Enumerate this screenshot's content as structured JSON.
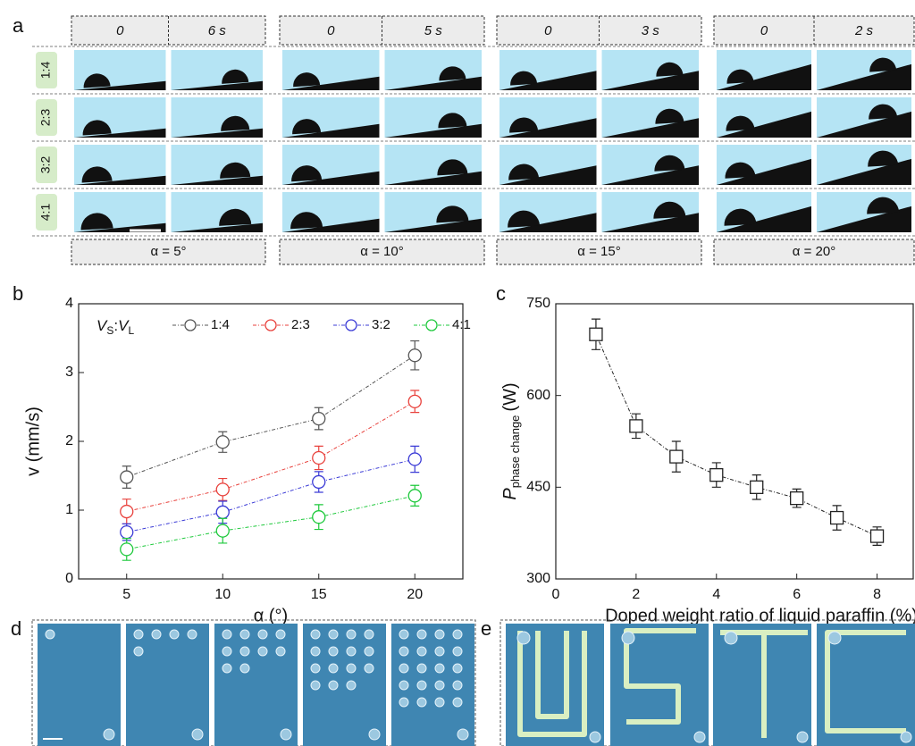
{
  "panel_labels": [
    "a",
    "b",
    "c",
    "d",
    "e"
  ],
  "panel_a": {
    "ratios": [
      "1:4",
      "2:3",
      "3:2",
      "4:1"
    ],
    "groups": [
      {
        "times": [
          "0",
          "6 s"
        ],
        "angle": "α = 5°"
      },
      {
        "times": [
          "0",
          "5 s"
        ],
        "angle": "α = 10°"
      },
      {
        "times": [
          "0",
          "3 s"
        ],
        "angle": "α = 15°"
      },
      {
        "times": [
          "0",
          "2 s"
        ],
        "angle": "α = 20°"
      }
    ]
  },
  "chart_data": [
    {
      "type": "line",
      "marker": "circle",
      "xlabel": "α (°)",
      "ylabel": "v (mm/s)",
      "legend_title_parts": [
        "V",
        "S",
        ":",
        "V",
        "L"
      ],
      "x": [
        5,
        10,
        15,
        20
      ],
      "xlim": [
        2.5,
        22.5
      ],
      "xticks": [
        5,
        10,
        15,
        20
      ],
      "ylim": [
        0,
        4
      ],
      "yticks": [
        0,
        1,
        2,
        3,
        4
      ],
      "series": [
        {
          "name": "1:4",
          "color": "#555555",
          "values": [
            1.48,
            1.99,
            2.33,
            3.25
          ],
          "errors": [
            0.16,
            0.15,
            0.16,
            0.21
          ]
        },
        {
          "name": "2:3",
          "color": "#e8413c",
          "values": [
            0.98,
            1.3,
            1.76,
            2.58
          ],
          "errors": [
            0.18,
            0.16,
            0.17,
            0.16
          ]
        },
        {
          "name": "3:2",
          "color": "#3b3bd6",
          "values": [
            0.68,
            0.97,
            1.41,
            1.74
          ],
          "errors": [
            0.12,
            0.16,
            0.15,
            0.19
          ]
        },
        {
          "name": "4:1",
          "color": "#1ec93c",
          "values": [
            0.43,
            0.7,
            0.9,
            1.21
          ],
          "errors": [
            0.16,
            0.18,
            0.18,
            0.15
          ]
        }
      ]
    },
    {
      "type": "line",
      "marker": "square",
      "xlabel": "Doped weight ratio of liquid paraffin (%)",
      "ylabel_parts": [
        "P",
        "phase change",
        "(W)"
      ],
      "x": [
        1,
        2,
        3,
        4,
        5,
        6,
        7,
        8
      ],
      "xlim": [
        0,
        8.9
      ],
      "xticks": [
        0,
        2,
        4,
        6,
        8
      ],
      "ylim": [
        300,
        750
      ],
      "yticks": [
        300,
        450,
        600,
        750
      ],
      "series": [
        {
          "color": "#222222",
          "values": [
            700,
            550,
            500,
            470,
            450,
            432,
            400,
            370
          ],
          "errors": [
            25,
            20,
            25,
            20,
            20,
            15,
            20,
            15
          ]
        }
      ]
    }
  ]
}
